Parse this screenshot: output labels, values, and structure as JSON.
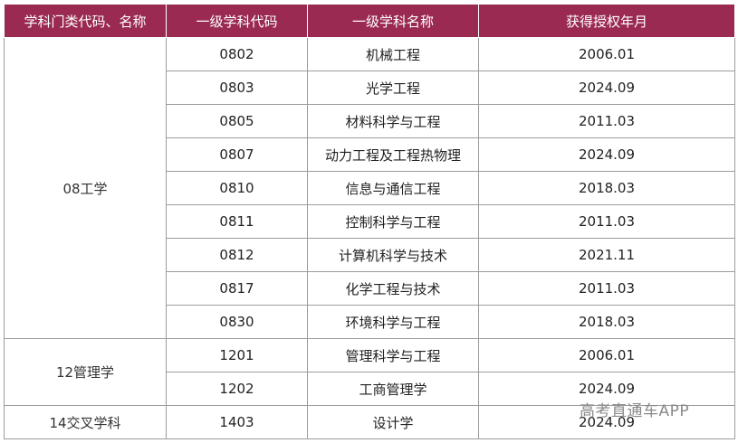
{
  "table": {
    "headers": [
      "学科门类代码、名称",
      "一级学科代码",
      "一级学科名称",
      "获得授权年月"
    ],
    "groups": [
      {
        "category": "08工学",
        "rows": [
          {
            "code": "0802",
            "name": "机械工程",
            "date": "2006.01"
          },
          {
            "code": "0803",
            "name": "光学工程",
            "date": "2024.09"
          },
          {
            "code": "0805",
            "name": "材料科学与工程",
            "date": "2011.03"
          },
          {
            "code": "0807",
            "name": "动力工程及工程热物理",
            "date": "2024.09"
          },
          {
            "code": "0810",
            "name": "信息与通信工程",
            "date": "2018.03"
          },
          {
            "code": "0811",
            "name": "控制科学与工程",
            "date": "2011.03"
          },
          {
            "code": "0812",
            "name": "计算机科学与技术",
            "date": "2021.11"
          },
          {
            "code": "0817",
            "name": "化学工程与技术",
            "date": "2011.03"
          },
          {
            "code": "0830",
            "name": "环境科学与工程",
            "date": "2018.03"
          }
        ]
      },
      {
        "category": "12管理学",
        "rows": [
          {
            "code": "1201",
            "name": "管理科学与工程",
            "date": "2006.01"
          },
          {
            "code": "1202",
            "name": "工商管理学",
            "date": "2024.09"
          }
        ]
      },
      {
        "category": "14交叉学科",
        "rows": [
          {
            "code": "1403",
            "name": "设计学",
            "date": "2024.09"
          }
        ]
      }
    ]
  },
  "watermark": "高考直通车APP",
  "colors": {
    "header_bg": "#9b2a52",
    "header_text": "#ffffff",
    "border": "#9c9c9c"
  }
}
